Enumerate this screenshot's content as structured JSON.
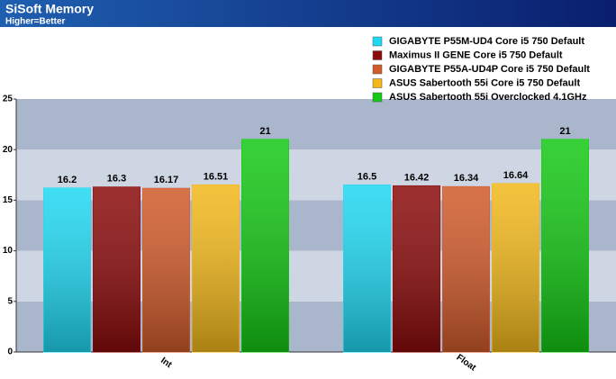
{
  "chart_data": {
    "type": "bar",
    "title": "SiSoft Memory",
    "subtitle": "Higher=Better",
    "categories": [
      "Int",
      "Float"
    ],
    "series": [
      {
        "name": "GIGABYTE P55M-UD4 Core i5 750 Default",
        "color": "#1fd8f2",
        "values": [
          16.2,
          16.5
        ]
      },
      {
        "name": "Maximus II GENE Core i5 750 Default",
        "color": "#8a0a0a",
        "values": [
          16.3,
          16.42
        ]
      },
      {
        "name": "GIGABYTE P55A-UD4P Core i5 750 Default",
        "color": "#d05a2a",
        "values": [
          16.17,
          16.34
        ]
      },
      {
        "name": "ASUS Sabertooth 55i Core i5 750 Default",
        "color": "#f2b81a",
        "values": [
          16.51,
          16.64
        ]
      },
      {
        "name": "ASUS Sabertooth 55i Overclocked 4.1GHz",
        "color": "#14c814",
        "values": [
          21,
          21
        ]
      }
    ],
    "ylim": [
      0,
      25
    ],
    "yticks": [
      0,
      5,
      10,
      15,
      20,
      25
    ],
    "grid": true
  }
}
